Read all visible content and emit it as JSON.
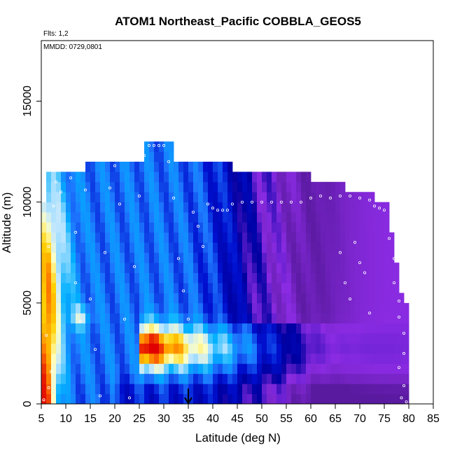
{
  "chart_data": {
    "type": "heatmap",
    "title": "ATOM1 Northeast_Pacific COBBLA_GEOS5",
    "flights_note": "Flts: 1,2",
    "date_note": "MMDD: 0729,0801",
    "xlabel": "Latitude (deg N)",
    "ylabel": "Altitude (m)",
    "xlim": [
      5,
      85
    ],
    "ylim": [
      0,
      18000
    ],
    "x_ticks": [
      5,
      10,
      15,
      20,
      25,
      30,
      35,
      40,
      45,
      50,
      55,
      60,
      65,
      70,
      75,
      80,
      85
    ],
    "y_ticks": [
      0,
      5000,
      10000,
      15000
    ],
    "grid": false,
    "arrow_marker_latitude": 35,
    "colormap": [
      "#5a1aa0",
      "#8a2be2",
      "#0000a0",
      "#0010d0",
      "#1e78ff",
      "#00b0ff",
      "#bfe6ff",
      "#ffffc0",
      "#ffd000",
      "#ff7000",
      "#e00000"
    ],
    "grid_cells": {
      "lat_step": 1,
      "alt_step": 500,
      "columns": [
        {
          "lat_from": 5,
          "lat_to": 6,
          "alt_top": 10000
        },
        {
          "lat_from": 6,
          "lat_to": 9,
          "alt_top": 11500
        },
        {
          "lat_from": 9,
          "lat_to": 14,
          "alt_top": 11500
        },
        {
          "lat_from": 14,
          "lat_to": 26,
          "alt_top": 12000
        },
        {
          "lat_from": 26,
          "lat_to": 32,
          "alt_top": 13000
        },
        {
          "lat_from": 32,
          "lat_to": 44,
          "alt_top": 12000
        },
        {
          "lat_from": 44,
          "lat_to": 60,
          "alt_top": 11500
        },
        {
          "lat_from": 60,
          "lat_to": 67,
          "alt_top": 11000
        },
        {
          "lat_from": 67,
          "lat_to": 73,
          "alt_top": 10500
        },
        {
          "lat_from": 73,
          "lat_to": 76,
          "alt_top": 10000
        },
        {
          "lat_from": 76,
          "lat_to": 77,
          "alt_top": 8500
        },
        {
          "lat_from": 77,
          "lat_to": 78,
          "alt_top": 7000
        },
        {
          "lat_from": 78,
          "lat_to": 79,
          "alt_top": 5500
        },
        {
          "lat_from": 79,
          "lat_to": 80,
          "alt_top": 5000
        }
      ]
    },
    "sample_points": [
      [
        5.5,
        200
      ],
      [
        6.5,
        800
      ],
      [
        7,
        1600
      ],
      [
        6,
        3400
      ],
      [
        6.5,
        7800
      ],
      [
        7.5,
        9800
      ],
      [
        8,
        11000
      ],
      [
        9,
        10500
      ],
      [
        11,
        11200
      ],
      [
        12,
        8500
      ],
      [
        12,
        6000
      ],
      [
        13,
        4100
      ],
      [
        14,
        10600
      ],
      [
        15,
        5200
      ],
      [
        16,
        2700
      ],
      [
        17,
        400
      ],
      [
        18,
        7500
      ],
      [
        19,
        10700
      ],
      [
        20,
        11800
      ],
      [
        21,
        9900
      ],
      [
        22,
        4200
      ],
      [
        23,
        300
      ],
      [
        24,
        6800
      ],
      [
        25,
        10300
      ],
      [
        26,
        12300
      ],
      [
        27,
        12800
      ],
      [
        28,
        12800
      ],
      [
        29,
        12800
      ],
      [
        30,
        12800
      ],
      [
        31,
        12000
      ],
      [
        32,
        10200
      ],
      [
        33,
        7200
      ],
      [
        34,
        5600
      ],
      [
        35,
        4200
      ],
      [
        36,
        9500
      ],
      [
        37,
        8800
      ],
      [
        38,
        7800
      ],
      [
        39,
        9900
      ],
      [
        40,
        9700
      ],
      [
        41,
        9600
      ],
      [
        42,
        9600
      ],
      [
        43,
        9600
      ],
      [
        44,
        9900
      ],
      [
        46,
        10000
      ],
      [
        48,
        10000
      ],
      [
        50,
        10000
      ],
      [
        52,
        10000
      ],
      [
        54,
        10000
      ],
      [
        56,
        10000
      ],
      [
        58,
        10000
      ],
      [
        60,
        10200
      ],
      [
        62,
        10300
      ],
      [
        64,
        10200
      ],
      [
        66,
        10300
      ],
      [
        68,
        10300
      ],
      [
        70,
        10200
      ],
      [
        72,
        10100
      ],
      [
        73,
        9800
      ],
      [
        74,
        9700
      ],
      [
        66,
        7500
      ],
      [
        67,
        6000
      ],
      [
        68,
        5200
      ],
      [
        69,
        8000
      ],
      [
        70,
        7000
      ],
      [
        71,
        6500
      ],
      [
        72,
        4500
      ],
      [
        75,
        9600
      ],
      [
        76,
        8200
      ],
      [
        77,
        7200
      ],
      [
        77,
        6000
      ],
      [
        78,
        5100
      ],
      [
        78,
        4300
      ],
      [
        79,
        3500
      ],
      [
        79,
        2500
      ],
      [
        78,
        1800
      ],
      [
        79,
        900
      ],
      [
        78.5,
        300
      ],
      [
        79.5,
        100
      ]
    ]
  }
}
